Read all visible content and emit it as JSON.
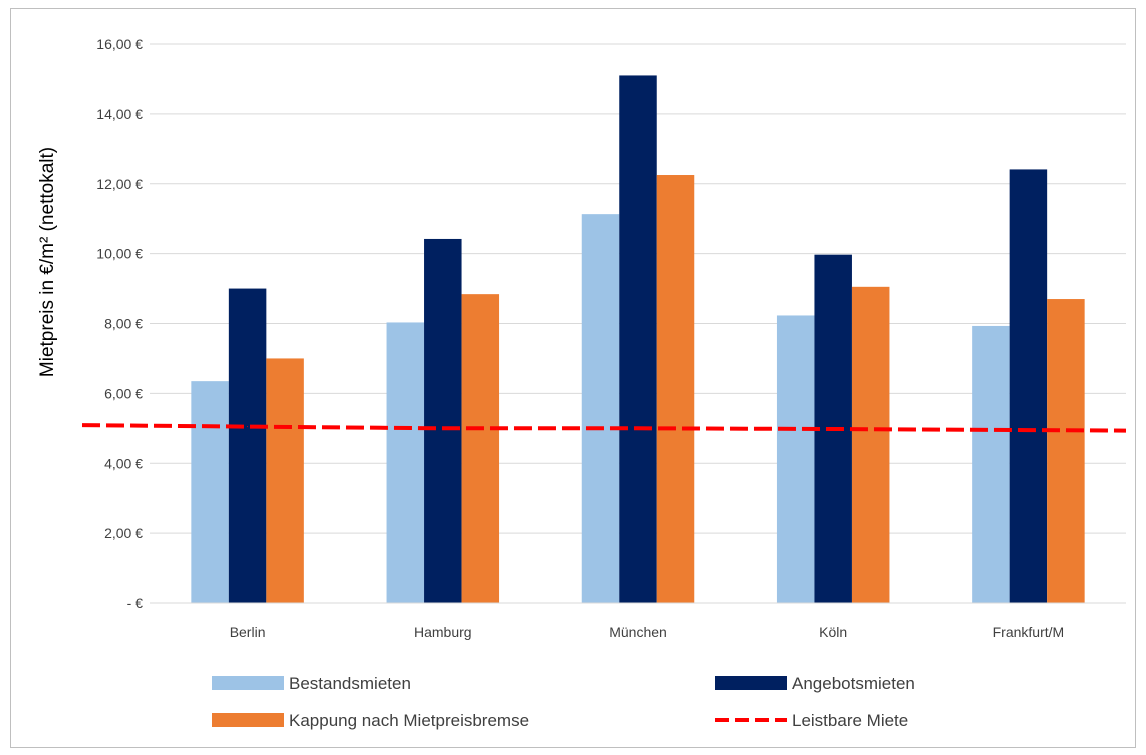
{
  "chart_data": {
    "type": "bar",
    "title": "",
    "xlabel": "",
    "ylabel": "Mietpreis in €/m² (nettokalt)",
    "ylim": [
      0,
      16
    ],
    "yticks": [
      {
        "value": 0,
        "label": "-  €"
      },
      {
        "value": 2,
        "label": "2,00 €"
      },
      {
        "value": 4,
        "label": "4,00 €"
      },
      {
        "value": 6,
        "label": "6,00 €"
      },
      {
        "value": 8,
        "label": "8,00 €"
      },
      {
        "value": 10,
        "label": "10,00 €"
      },
      {
        "value": 12,
        "label": "12,00 €"
      },
      {
        "value": 14,
        "label": "14,00 €"
      },
      {
        "value": 16,
        "label": "16,00 €"
      }
    ],
    "categories": [
      "Berlin",
      "Hamburg",
      "München",
      "Köln",
      "Frankfurt/M"
    ],
    "series": [
      {
        "name": "Bestandsmieten",
        "type": "bar",
        "color": "#9dc3e6",
        "values": [
          6.35,
          8.03,
          11.13,
          8.23,
          7.93
        ]
      },
      {
        "name": "Angebotsmieten",
        "type": "bar",
        "color": "#002060",
        "values": [
          9.0,
          10.42,
          15.1,
          9.97,
          12.41
        ]
      },
      {
        "name": "Kappung nach Mietpreisbremse",
        "type": "bar",
        "color": "#ed7d31",
        "values": [
          7.0,
          8.84,
          12.25,
          9.05,
          8.7
        ]
      },
      {
        "name": "Leistbare Miete",
        "type": "line",
        "style": "dashed",
        "color": "#ff0000",
        "values": [
          5.05,
          5.0,
          5.0,
          4.98,
          4.95
        ]
      }
    ],
    "grid": true,
    "legend": "bottom"
  }
}
